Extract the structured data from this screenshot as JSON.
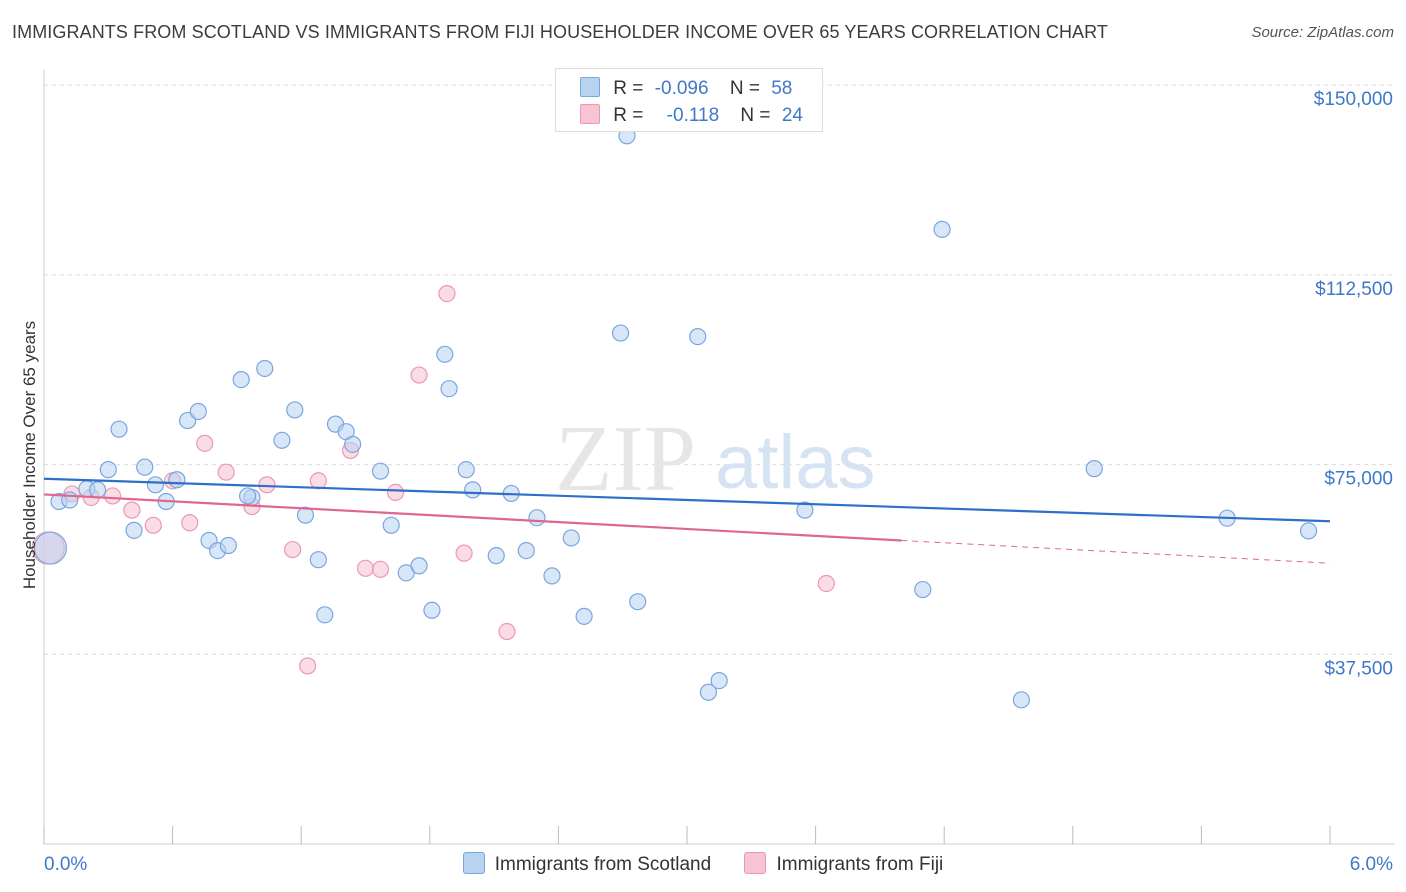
{
  "title": "IMMIGRANTS FROM SCOTLAND VS IMMIGRANTS FROM FIJI HOUSEHOLDER INCOME OVER 65 YEARS CORRELATION CHART",
  "source": "Source: ZipAtlas.com",
  "watermark": {
    "zip": "ZIP",
    "atlas": "atlas"
  },
  "colors": {
    "scotland_fill": "#b8d3f2",
    "scotland_stroke": "#7aa6de",
    "scotland_line": "#2f6fc9",
    "fiji_fill": "#f7c4d3",
    "fiji_stroke": "#ec98b2",
    "fiji_line": "#e06690",
    "tick_text": "#3f78c8",
    "grid": "#dcdcdc"
  },
  "legend": {
    "rows": [
      {
        "r_label": "R =",
        "r_value": "-0.096",
        "n_label": "N =",
        "n_value": "58"
      },
      {
        "r_label": "R =",
        "r_value": "-0.118",
        "n_label": "N =",
        "n_value": "24"
      }
    ]
  },
  "chart_data": {
    "type": "scatter",
    "title": "IMMIGRANTS FROM SCOTLAND VS IMMIGRANTS FROM FIJI HOUSEHOLDER INCOME OVER 65 YEARS CORRELATION CHART",
    "xlabel": "",
    "ylabel": "Householder Income Over 65 years",
    "xlim": [
      0,
      6.0
    ],
    "ylim": [
      0,
      153000
    ],
    "x_tick_labels": [
      "0.0%",
      "6.0%"
    ],
    "y_ticks": [
      37500,
      75000,
      112500,
      150000
    ],
    "y_tick_labels": [
      "$37,500",
      "$75,000",
      "$112,500",
      "$150,000"
    ],
    "series": [
      {
        "name": "Immigrants from Scotland",
        "r": -0.096,
        "n": 58,
        "trend": {
          "x": [
            0,
            6.0
          ],
          "y": [
            72200,
            63800
          ]
        },
        "points": [
          {
            "x": 0.03,
            "y": 58500,
            "big": true
          },
          {
            "x": 0.07,
            "y": 67700
          },
          {
            "x": 0.12,
            "y": 68000
          },
          {
            "x": 0.3,
            "y": 74000
          },
          {
            "x": 0.35,
            "y": 82000
          },
          {
            "x": 0.42,
            "y": 62000
          },
          {
            "x": 0.47,
            "y": 74500
          },
          {
            "x": 0.52,
            "y": 71000
          },
          {
            "x": 0.57,
            "y": 67700
          },
          {
            "x": 0.62,
            "y": 72000
          },
          {
            "x": 0.67,
            "y": 83700
          },
          {
            "x": 0.72,
            "y": 85500
          },
          {
            "x": 0.77,
            "y": 60000
          },
          {
            "x": 0.81,
            "y": 58000
          },
          {
            "x": 0.86,
            "y": 59000
          },
          {
            "x": 0.92,
            "y": 91800
          },
          {
            "x": 0.97,
            "y": 68500
          },
          {
            "x": 1.03,
            "y": 94000
          },
          {
            "x": 1.11,
            "y": 79800
          },
          {
            "x": 1.17,
            "y": 85800
          },
          {
            "x": 1.22,
            "y": 65000
          },
          {
            "x": 1.28,
            "y": 56200
          },
          {
            "x": 1.31,
            "y": 45300
          },
          {
            "x": 1.36,
            "y": 83000
          },
          {
            "x": 1.41,
            "y": 81500
          },
          {
            "x": 1.44,
            "y": 79000
          },
          {
            "x": 1.57,
            "y": 73700
          },
          {
            "x": 1.62,
            "y": 63000
          },
          {
            "x": 1.69,
            "y": 53600
          },
          {
            "x": 1.75,
            "y": 55000
          },
          {
            "x": 1.81,
            "y": 46200
          },
          {
            "x": 1.87,
            "y": 96800
          },
          {
            "x": 1.89,
            "y": 90000
          },
          {
            "x": 1.97,
            "y": 74000
          },
          {
            "x": 2.0,
            "y": 70000
          },
          {
            "x": 2.11,
            "y": 57000
          },
          {
            "x": 2.18,
            "y": 69300
          },
          {
            "x": 2.25,
            "y": 58000
          },
          {
            "x": 2.3,
            "y": 64500
          },
          {
            "x": 2.37,
            "y": 53000
          },
          {
            "x": 2.46,
            "y": 60500
          },
          {
            "x": 2.52,
            "y": 45000
          },
          {
            "x": 2.69,
            "y": 101000
          },
          {
            "x": 2.72,
            "y": 140000
          },
          {
            "x": 2.77,
            "y": 47900
          },
          {
            "x": 3.05,
            "y": 100300
          },
          {
            "x": 3.1,
            "y": 30000
          },
          {
            "x": 3.15,
            "y": 32300
          },
          {
            "x": 3.55,
            "y": 66000
          },
          {
            "x": 4.1,
            "y": 50300
          },
          {
            "x": 4.19,
            "y": 121500
          },
          {
            "x": 4.56,
            "y": 28500
          },
          {
            "x": 4.9,
            "y": 74200
          },
          {
            "x": 5.52,
            "y": 64400
          },
          {
            "x": 5.9,
            "y": 61900
          },
          {
            "x": 0.2,
            "y": 70200
          },
          {
            "x": 0.25,
            "y": 70000
          },
          {
            "x": 0.95,
            "y": 68800
          }
        ]
      },
      {
        "name": "Immigrants from Fiji",
        "r": -0.118,
        "n": 24,
        "trend": {
          "x": [
            0,
            4.0
          ],
          "y": [
            69100,
            60000
          ]
        },
        "trend_dashed": {
          "x": [
            4.0,
            6.0
          ],
          "y": [
            60000,
            55500
          ]
        },
        "points": [
          {
            "x": 0.02,
            "y": 58500,
            "big": true
          },
          {
            "x": 0.13,
            "y": 69200
          },
          {
            "x": 0.22,
            "y": 68500
          },
          {
            "x": 0.32,
            "y": 68800
          },
          {
            "x": 0.41,
            "y": 66000
          },
          {
            "x": 0.51,
            "y": 63000
          },
          {
            "x": 0.6,
            "y": 71800
          },
          {
            "x": 0.68,
            "y": 63500
          },
          {
            "x": 0.75,
            "y": 79200
          },
          {
            "x": 0.85,
            "y": 73500
          },
          {
            "x": 0.97,
            "y": 66700
          },
          {
            "x": 1.04,
            "y": 71000
          },
          {
            "x": 1.16,
            "y": 58200
          },
          {
            "x": 1.23,
            "y": 35200
          },
          {
            "x": 1.28,
            "y": 71800
          },
          {
            "x": 1.43,
            "y": 77800
          },
          {
            "x": 1.5,
            "y": 54500
          },
          {
            "x": 1.57,
            "y": 54300
          },
          {
            "x": 1.64,
            "y": 69500
          },
          {
            "x": 1.75,
            "y": 92700
          },
          {
            "x": 1.88,
            "y": 108800
          },
          {
            "x": 1.96,
            "y": 57500
          },
          {
            "x": 2.16,
            "y": 42000
          },
          {
            "x": 3.65,
            "y": 51500
          }
        ]
      }
    ]
  }
}
